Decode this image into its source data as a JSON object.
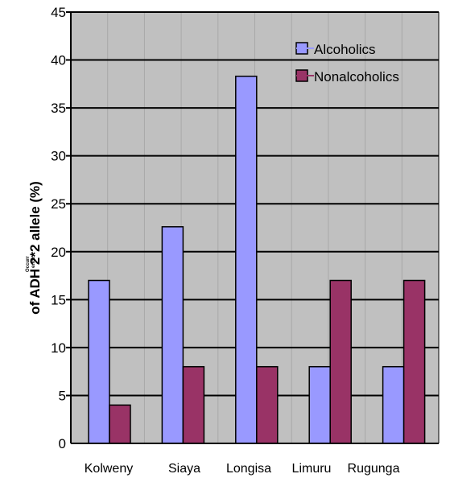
{
  "chart_data": {
    "type": "bar",
    "title": "",
    "xlabel": "",
    "ylabel_small": [
      "Occurr",
      "ence"
    ],
    "ylabel": "of ADH 2*2 allele (%)",
    "categories": [
      "Kolweny",
      "Siaya",
      "Longisa",
      "Limuru",
      "Rugunga"
    ],
    "series": [
      {
        "name": "Alcoholics",
        "color": "#9999ff",
        "values": [
          17,
          22.6,
          38.3,
          8,
          8
        ]
      },
      {
        "name": "Nonalcoholics",
        "color": "#993366",
        "values": [
          4,
          8,
          8,
          17,
          17
        ]
      }
    ],
    "ylim": [
      0,
      45
    ],
    "yticks": [
      0,
      5,
      10,
      15,
      20,
      25,
      30,
      35,
      40,
      45
    ],
    "grid": true,
    "plot_background": "#c0c0c0",
    "legend_position": "top-right"
  }
}
